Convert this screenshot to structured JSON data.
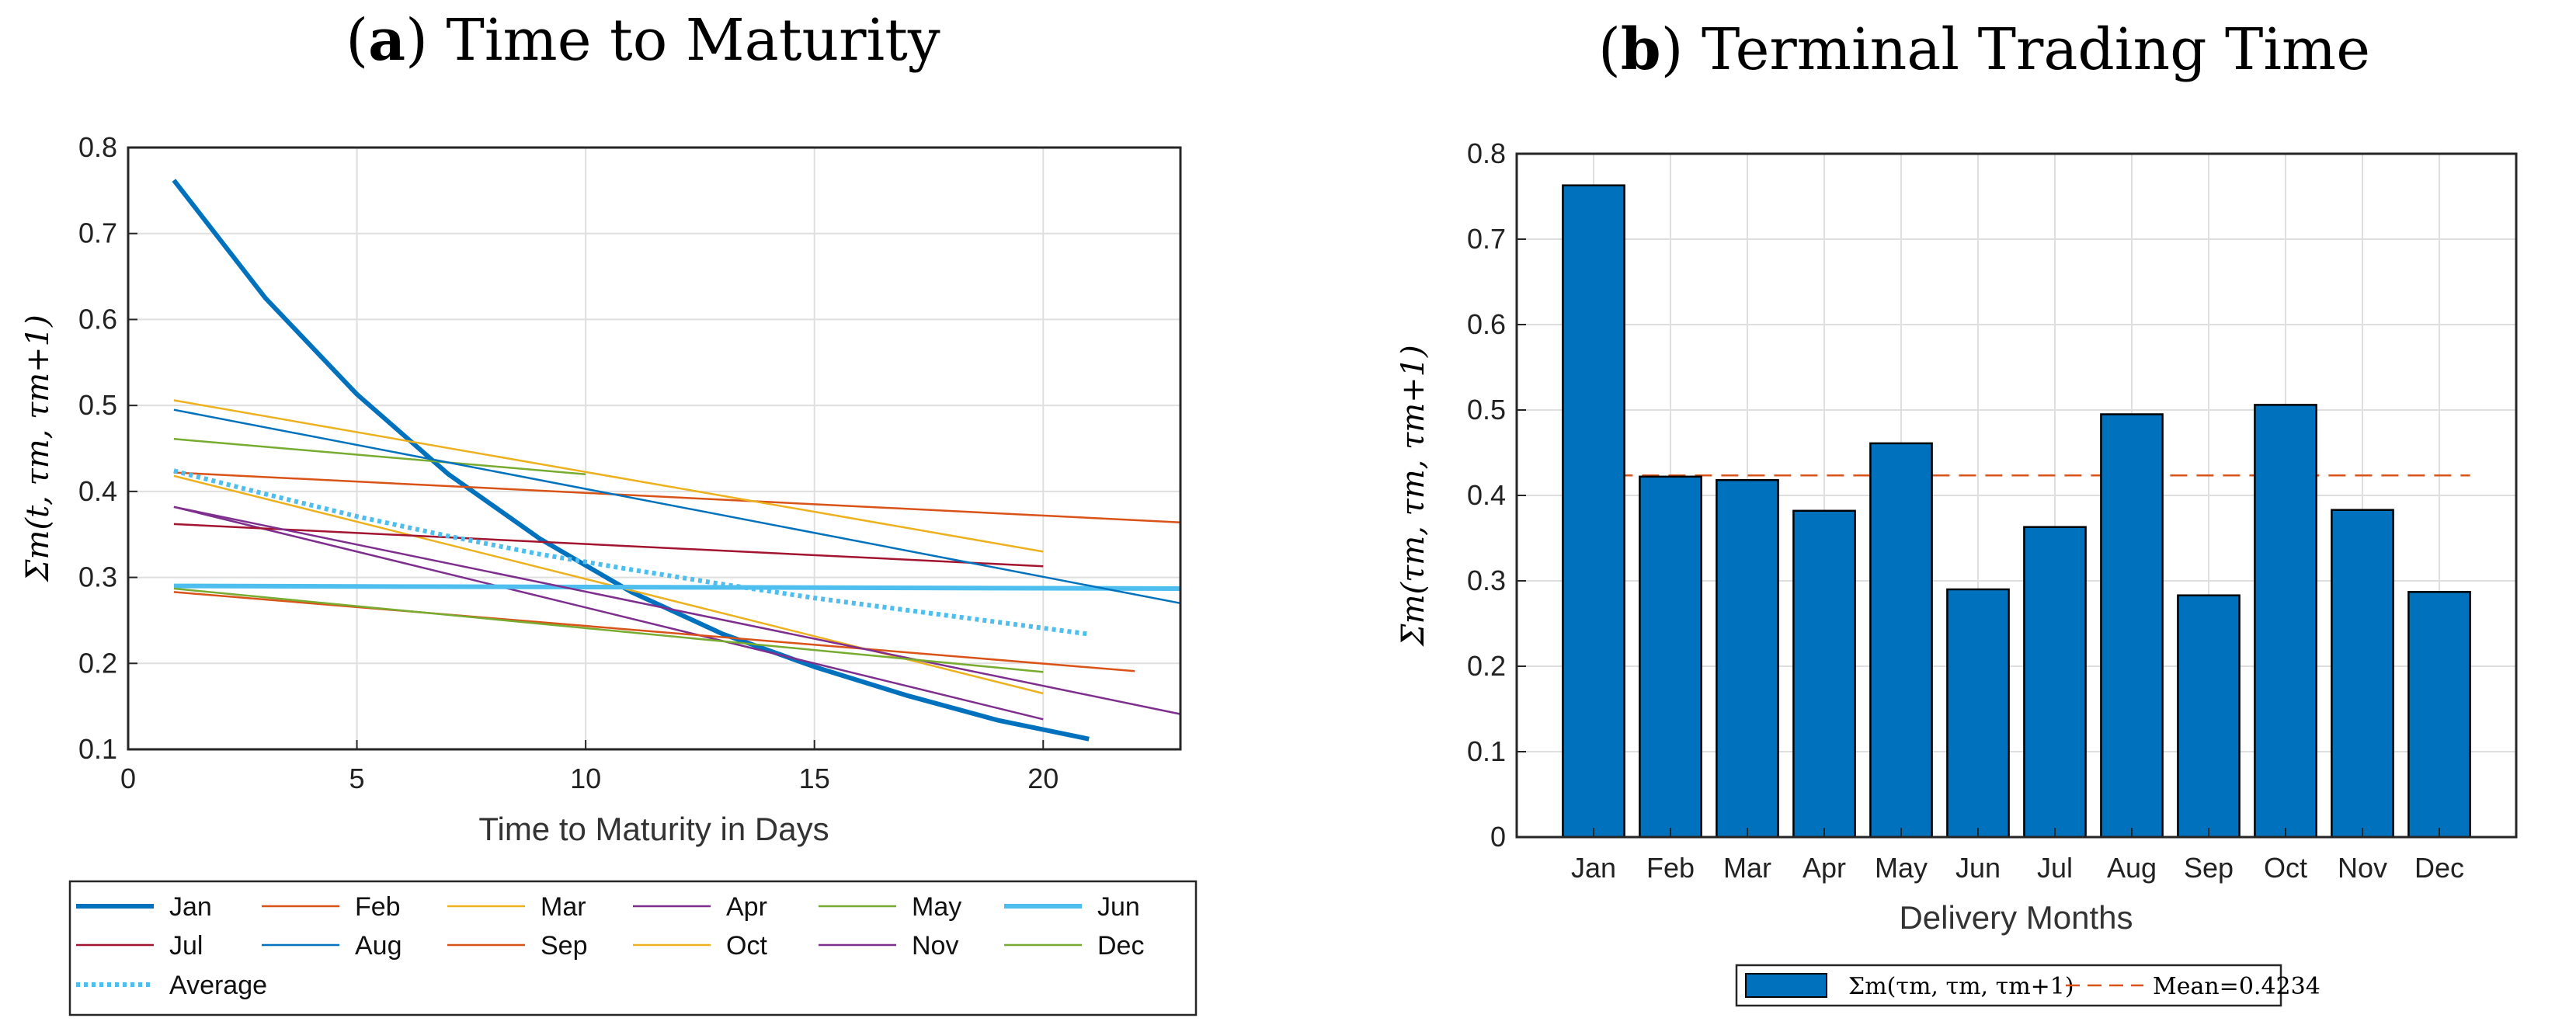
{
  "chart_data": [
    {
      "panel": "a",
      "type": "line",
      "title_letter": "a",
      "title": "Time to Maturity",
      "xlabel": "Time to Maturity in Days",
      "ylabel": "Σm(t, τm, τm+1)",
      "xlim": [
        0,
        23
      ],
      "ylim": [
        0.1,
        0.8
      ],
      "xticks": [
        "0",
        "5",
        "10",
        "15",
        "20"
      ],
      "yticks": [
        "0.1",
        "0.2",
        "0.3",
        "0.4",
        "0.5",
        "0.6",
        "0.7",
        "0.8"
      ],
      "grid": true,
      "legend_placement": "below",
      "series": [
        {
          "name": "Jan",
          "color": "#0072BD",
          "style": "bold",
          "x": [
            1,
            3,
            5,
            7,
            9,
            11,
            13,
            15,
            17,
            19,
            21
          ],
          "values": [
            0.762,
            0.625,
            0.513,
            0.42,
            0.345,
            0.283,
            0.234,
            0.196,
            0.163,
            0.134,
            0.112
          ]
        },
        {
          "name": "Feb",
          "color": "#D95319",
          "style": "thin",
          "x": [
            1,
            23
          ],
          "values": [
            0.422,
            0.364
          ]
        },
        {
          "name": "Mar",
          "color": "#EDB120",
          "style": "thin",
          "x": [
            1,
            20
          ],
          "values": [
            0.418,
            0.165
          ]
        },
        {
          "name": "Apr",
          "color": "#7E2F8E",
          "style": "thin",
          "x": [
            1,
            20
          ],
          "values": [
            0.382,
            0.135
          ]
        },
        {
          "name": "May",
          "color": "#77AC30",
          "style": "thin",
          "x": [
            1,
            10
          ],
          "values": [
            0.461,
            0.42
          ]
        },
        {
          "name": "Jun",
          "color": "#4DBEEE",
          "style": "bold",
          "x": [
            1,
            23
          ],
          "values": [
            0.29,
            0.287
          ]
        },
        {
          "name": "Jul",
          "color": "#A2142F",
          "style": "thin",
          "x": [
            1,
            20
          ],
          "values": [
            0.362,
            0.313
          ]
        },
        {
          "name": "Aug",
          "color": "#0072BD",
          "style": "thin",
          "x": [
            1,
            23
          ],
          "values": [
            0.495,
            0.27
          ]
        },
        {
          "name": "Sep",
          "color": "#D95319",
          "style": "thin",
          "x": [
            1,
            22
          ],
          "values": [
            0.283,
            0.191
          ]
        },
        {
          "name": "Oct",
          "color": "#EDB120",
          "style": "thin",
          "x": [
            1,
            20
          ],
          "values": [
            0.506,
            0.33
          ]
        },
        {
          "name": "Nov",
          "color": "#7E2F8E",
          "style": "thin",
          "x": [
            1,
            23
          ],
          "values": [
            0.382,
            0.141
          ]
        },
        {
          "name": "Dec",
          "color": "#77AC30",
          "style": "thin",
          "x": [
            1,
            20
          ],
          "values": [
            0.287,
            0.19
          ]
        },
        {
          "name": "Average",
          "color": "#4DBEEE",
          "style": "dotted",
          "x": [
            1,
            3,
            5,
            7,
            9,
            11,
            13,
            15,
            17,
            19,
            21
          ],
          "values": [
            0.424,
            0.397,
            0.371,
            0.348,
            0.327,
            0.309,
            0.292,
            0.276,
            0.262,
            0.248,
            0.234
          ]
        }
      ]
    },
    {
      "panel": "b",
      "type": "bar",
      "title_letter": "b",
      "title": "Terminal Trading Time",
      "xlabel": "Delivery Months",
      "ylabel": "Σm(τm, τm, τm+1)",
      "ylim": [
        0,
        0.8
      ],
      "yticks": [
        "0",
        "0.1",
        "0.2",
        "0.3",
        "0.4",
        "0.5",
        "0.6",
        "0.7",
        "0.8"
      ],
      "grid": true,
      "categories": [
        "Jan",
        "Feb",
        "Mar",
        "Apr",
        "May",
        "Jun",
        "Jul",
        "Aug",
        "Sep",
        "Oct",
        "Nov",
        "Dec"
      ],
      "values": [
        0.763,
        0.422,
        0.418,
        0.382,
        0.461,
        0.29,
        0.363,
        0.495,
        0.283,
        0.506,
        0.383,
        0.287
      ],
      "bar_color": "#0072BD",
      "mean": 0.4234,
      "mean_color": "#D95319",
      "legend": {
        "bar_label": "Σm(τm, τm, τm+1)",
        "mean_label": "Mean=0.4234"
      },
      "legend_placement": "below"
    }
  ]
}
